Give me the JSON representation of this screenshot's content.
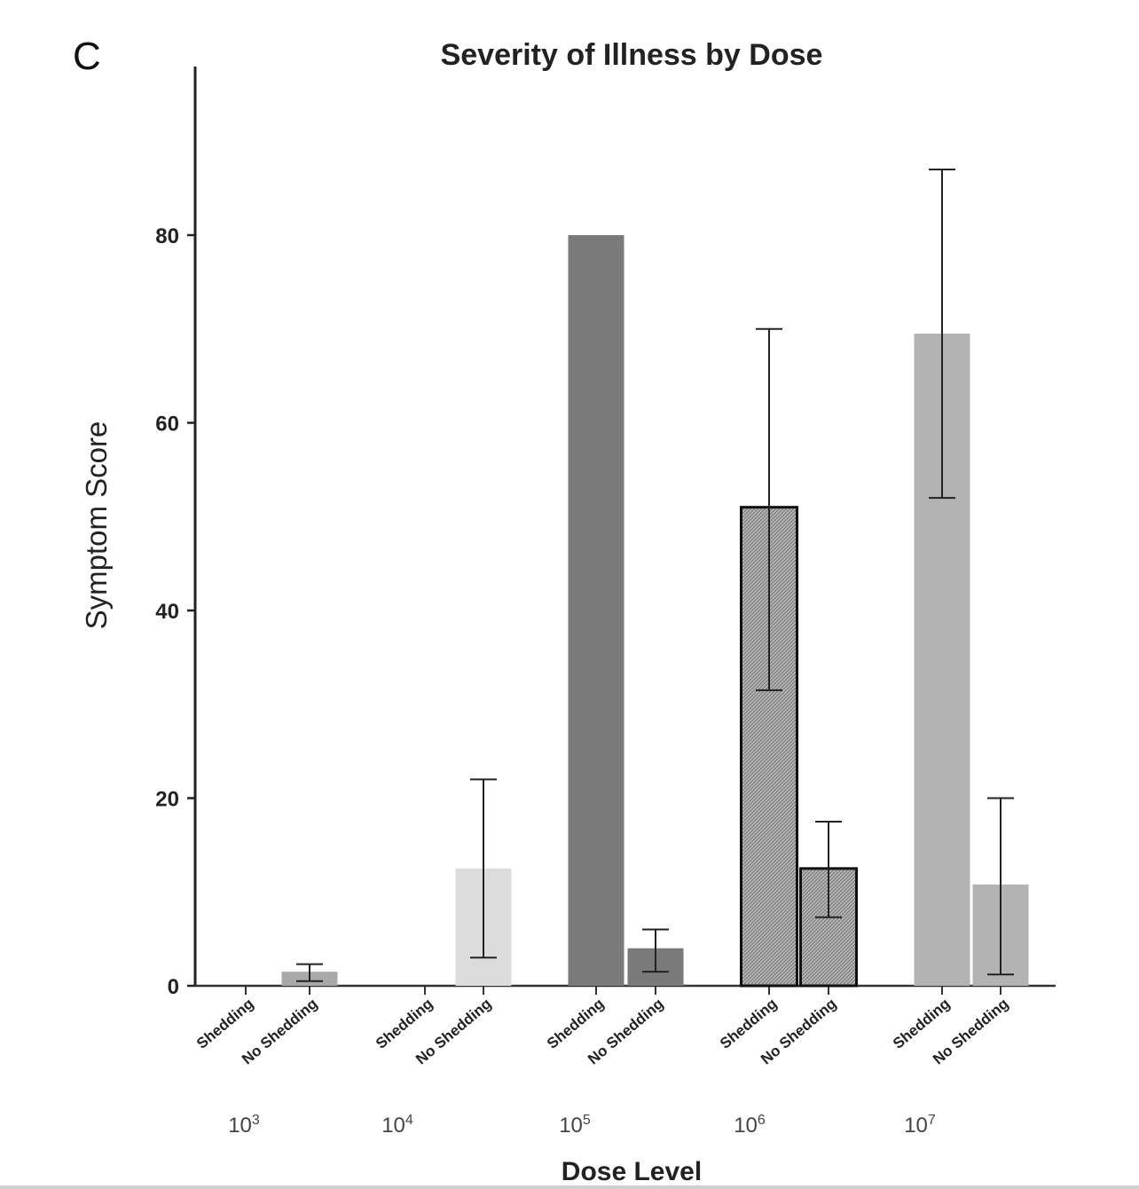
{
  "chart_data": {
    "type": "bar",
    "panel_letter": "C",
    "title": "Severity of Illness by Dose",
    "xlabel": "Dose Level",
    "ylabel": "Symptom Score",
    "ylim": [
      0,
      100
    ],
    "yticks": [
      "0",
      "20",
      "40",
      "60",
      "80"
    ],
    "ytick_values": [
      0,
      20,
      40,
      60,
      80
    ],
    "grid": false,
    "legend": "none",
    "groups": [
      {
        "dose": "10",
        "exponent": "3",
        "bars": [
          {
            "category": "Shedding",
            "value": 0,
            "err_low": null,
            "err_high": null,
            "color": "#bdbdbd",
            "pattern": "none"
          },
          {
            "category": "No Shedding",
            "value": 1.5,
            "err_low": 0.5,
            "err_high": 2.3,
            "color": "#a8a8a8",
            "pattern": "none"
          }
        ]
      },
      {
        "dose": "10",
        "exponent": "4",
        "bars": [
          {
            "category": "Shedding",
            "value": 0,
            "err_low": null,
            "err_high": null,
            "color": "#d9d9d9",
            "pattern": "none"
          },
          {
            "category": "No Shedding",
            "value": 12.5,
            "err_low": 3,
            "err_high": 22,
            "color": "#dcdcdc",
            "pattern": "none"
          }
        ]
      },
      {
        "dose": "10",
        "exponent": "5",
        "bars": [
          {
            "category": "Shedding",
            "value": 80,
            "err_low": null,
            "err_high": null,
            "color": "#7a7a7a",
            "pattern": "none"
          },
          {
            "category": "No Shedding",
            "value": 4,
            "err_low": 1.5,
            "err_high": 6,
            "color": "#7a7a7a",
            "pattern": "none"
          }
        ]
      },
      {
        "dose": "10",
        "exponent": "6",
        "bars": [
          {
            "category": "Shedding",
            "value": 51,
            "err_low": 31.5,
            "err_high": 70,
            "color": "#b0b0b0",
            "pattern": "crosshatch"
          },
          {
            "category": "No Shedding",
            "value": 12.5,
            "err_low": 7.3,
            "err_high": 17.5,
            "color": "#b0b0b0",
            "pattern": "crosshatch"
          }
        ]
      },
      {
        "dose": "10",
        "exponent": "7",
        "bars": [
          {
            "category": "Shedding",
            "value": 69.5,
            "err_low": 52,
            "err_high": 87,
            "color": "#b3b3b3",
            "pattern": "none"
          },
          {
            "category": "No Shedding",
            "value": 10.8,
            "err_low": 1.2,
            "err_high": 20,
            "color": "#b3b3b3",
            "pattern": "none"
          }
        ]
      }
    ]
  }
}
